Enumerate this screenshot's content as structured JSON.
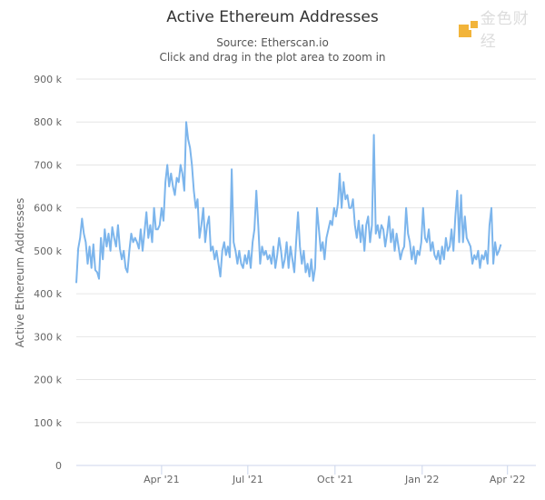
{
  "chart_data": {
    "type": "line",
    "title": "Active Ethereum Addresses",
    "subtitle": [
      "Source: Etherscan.io",
      "Click and drag in the plot area to zoom in"
    ],
    "xlabel": "",
    "ylabel": "Active Ethereum Addresses",
    "ylim": [
      0,
      900000
    ],
    "yticks": [
      {
        "value": 0,
        "label": "0"
      },
      {
        "value": 100000,
        "label": "100 k"
      },
      {
        "value": 200000,
        "label": "200 k"
      },
      {
        "value": 300000,
        "label": "300 k"
      },
      {
        "value": 400000,
        "label": "400 k"
      },
      {
        "value": 500000,
        "label": "500 k"
      },
      {
        "value": 600000,
        "label": "600 k"
      },
      {
        "value": 700000,
        "label": "700 k"
      },
      {
        "value": 800000,
        "label": "800 k"
      },
      {
        "value": 900000,
        "label": "900 k"
      }
    ],
    "xticks": [
      {
        "day": 90,
        "label": "Apr '21"
      },
      {
        "day": 181,
        "label": "Jul '21"
      },
      {
        "day": 273,
        "label": "Oct '21"
      },
      {
        "day": 365,
        "label": "Jan '22"
      },
      {
        "day": 455,
        "label": "Apr '22"
      }
    ],
    "x_start_date": "2021-01-01",
    "x_end_day": 485,
    "interval_days": 2,
    "grid": true,
    "series": [
      {
        "name": "Active Ethereum Addresses",
        "color": "#7cb5ec",
        "values_k": [
          425,
          505,
          530,
          575,
          540,
          520,
          470,
          510,
          460,
          515,
          455,
          450,
          435,
          530,
          480,
          550,
          510,
          540,
          500,
          555,
          530,
          510,
          560,
          505,
          480,
          500,
          460,
          450,
          500,
          540,
          520,
          530,
          520,
          505,
          550,
          500,
          545,
          590,
          530,
          560,
          520,
          600,
          550,
          550,
          560,
          600,
          570,
          660,
          700,
          650,
          680,
          650,
          630,
          670,
          660,
          700,
          680,
          640,
          800,
          760,
          740,
          700,
          640,
          600,
          620,
          530,
          560,
          600,
          520,
          560,
          580,
          500,
          510,
          480,
          500,
          470,
          440,
          500,
          520,
          490,
          510,
          485,
          690,
          520,
          500,
          470,
          500,
          470,
          460,
          490,
          470,
          500,
          460,
          520,
          550,
          640,
          560,
          470,
          510,
          490,
          500,
          480,
          490,
          470,
          510,
          460,
          490,
          530,
          500,
          460,
          480,
          520,
          460,
          510,
          480,
          450,
          520,
          590,
          510,
          470,
          500,
          450,
          470,
          440,
          480,
          430,
          460,
          600,
          550,
          500,
          520,
          480,
          530,
          550,
          570,
          560,
          600,
          580,
          610,
          680,
          600,
          660,
          620,
          630,
          600,
          600,
          620,
          560,
          530,
          570,
          520,
          560,
          500,
          560,
          580,
          520,
          560,
          770,
          540,
          560,
          530,
          560,
          550,
          510,
          540,
          580,
          520,
          550,
          500,
          540,
          510,
          480,
          500,
          510,
          600,
          540,
          520,
          480,
          510,
          470,
          500,
          490,
          520,
          600,
          530,
          520,
          550,
          500,
          520,
          490,
          480,
          500,
          470,
          510,
          480,
          530,
          500,
          510,
          550,
          500,
          580,
          640,
          520,
          630,
          520,
          580,
          530,
          520,
          510,
          470,
          490,
          480,
          500,
          460,
          490,
          480,
          500,
          470,
          560,
          600,
          470,
          520,
          490,
          500,
          515
        ]
      }
    ]
  },
  "watermark": "金色财经"
}
